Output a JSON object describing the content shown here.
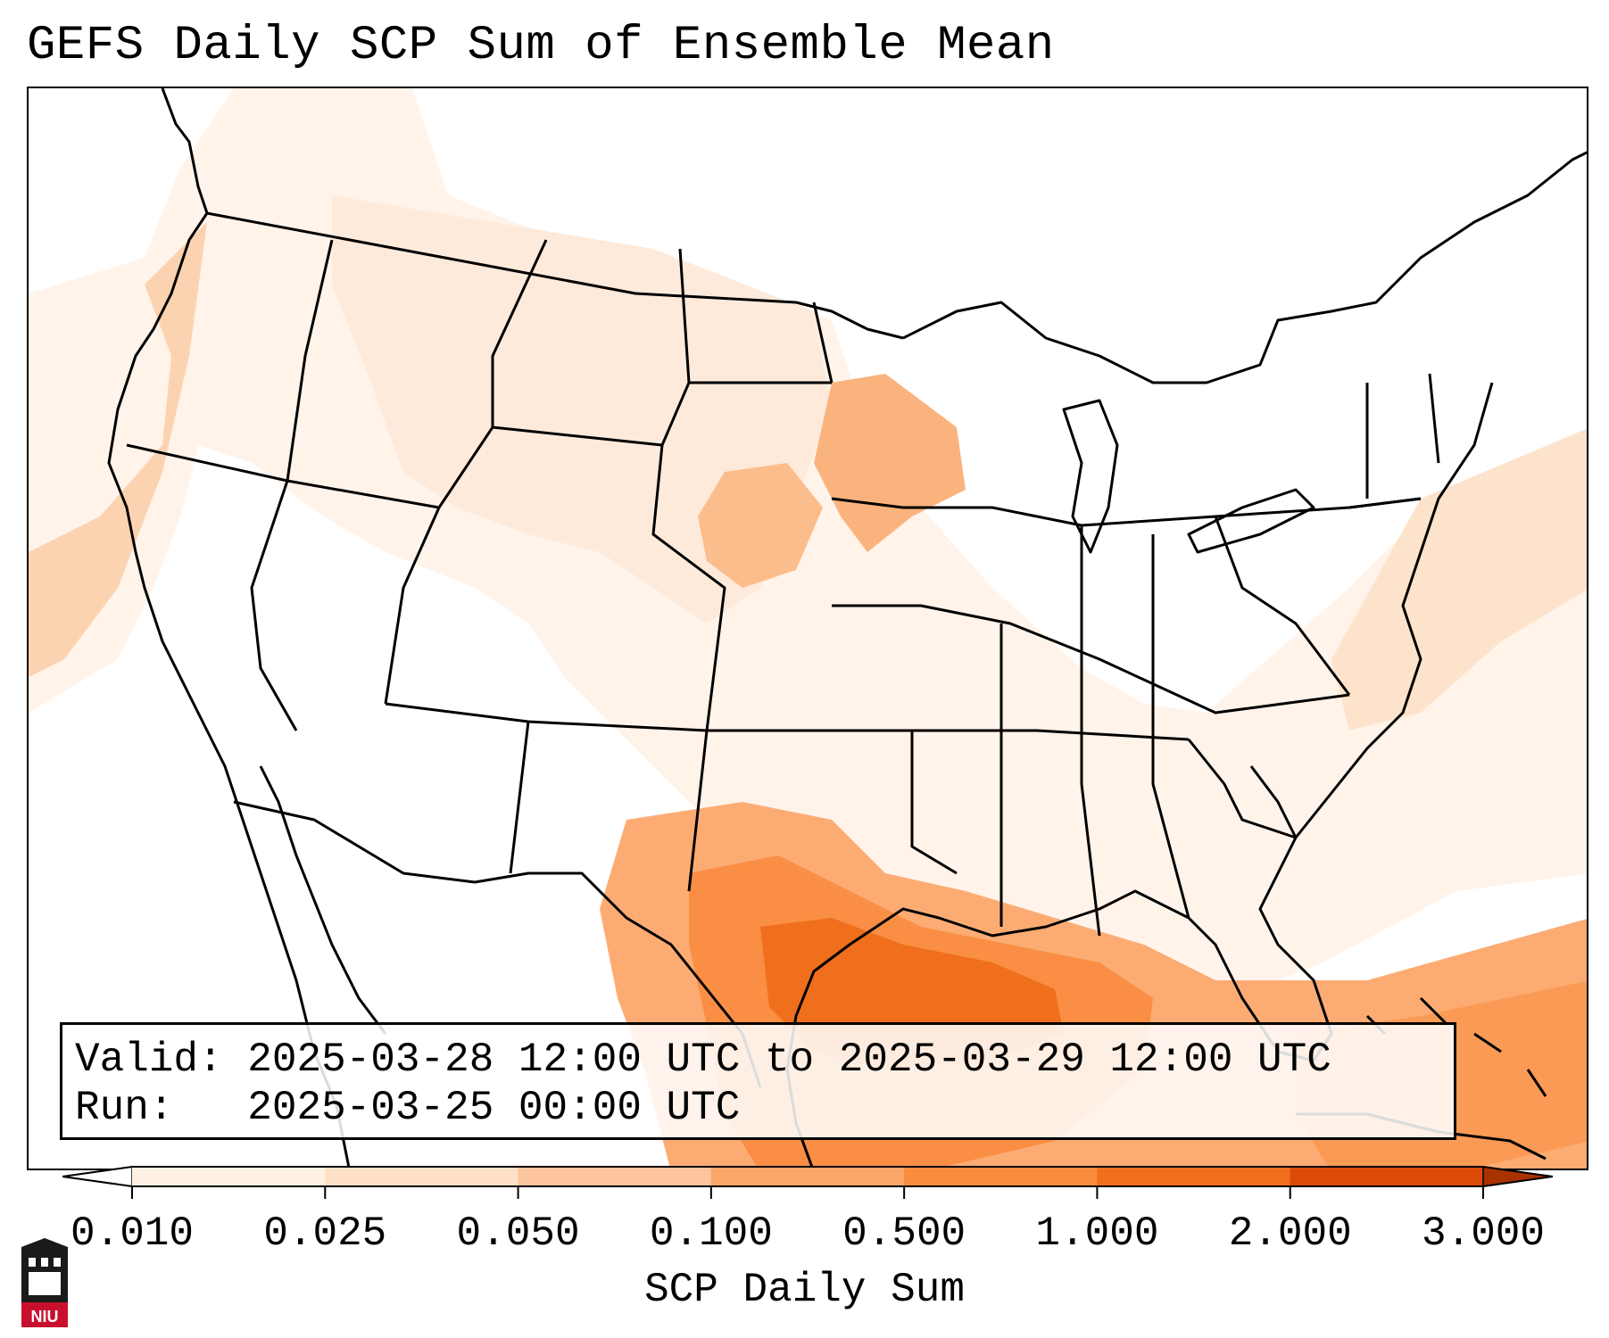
{
  "title": "GEFS Daily SCP Sum of Ensemble Mean",
  "info": {
    "valid_label": "Valid:",
    "valid_value": "2025-03-28 12:00 UTC to 2025-03-29 12:00 UTC",
    "run_label": "Run:",
    "run_value": "2025-03-25 00:00 UTC"
  },
  "colorbar": {
    "label": "SCP Daily Sum",
    "ticks": [
      "0.010",
      "0.025",
      "0.050",
      "0.100",
      "0.500",
      "1.000",
      "2.000",
      "3.000"
    ],
    "colors": [
      "#fff0e4",
      "#fee0c6",
      "#fdc59d",
      "#fca66a",
      "#f98c3d",
      "#ef6f1c",
      "#db4a06"
    ],
    "extend": "both"
  },
  "logo": {
    "text": "NIU",
    "accent": "#c8102e"
  },
  "colors": {
    "outline": "#000000",
    "background": "#ffffff"
  }
}
